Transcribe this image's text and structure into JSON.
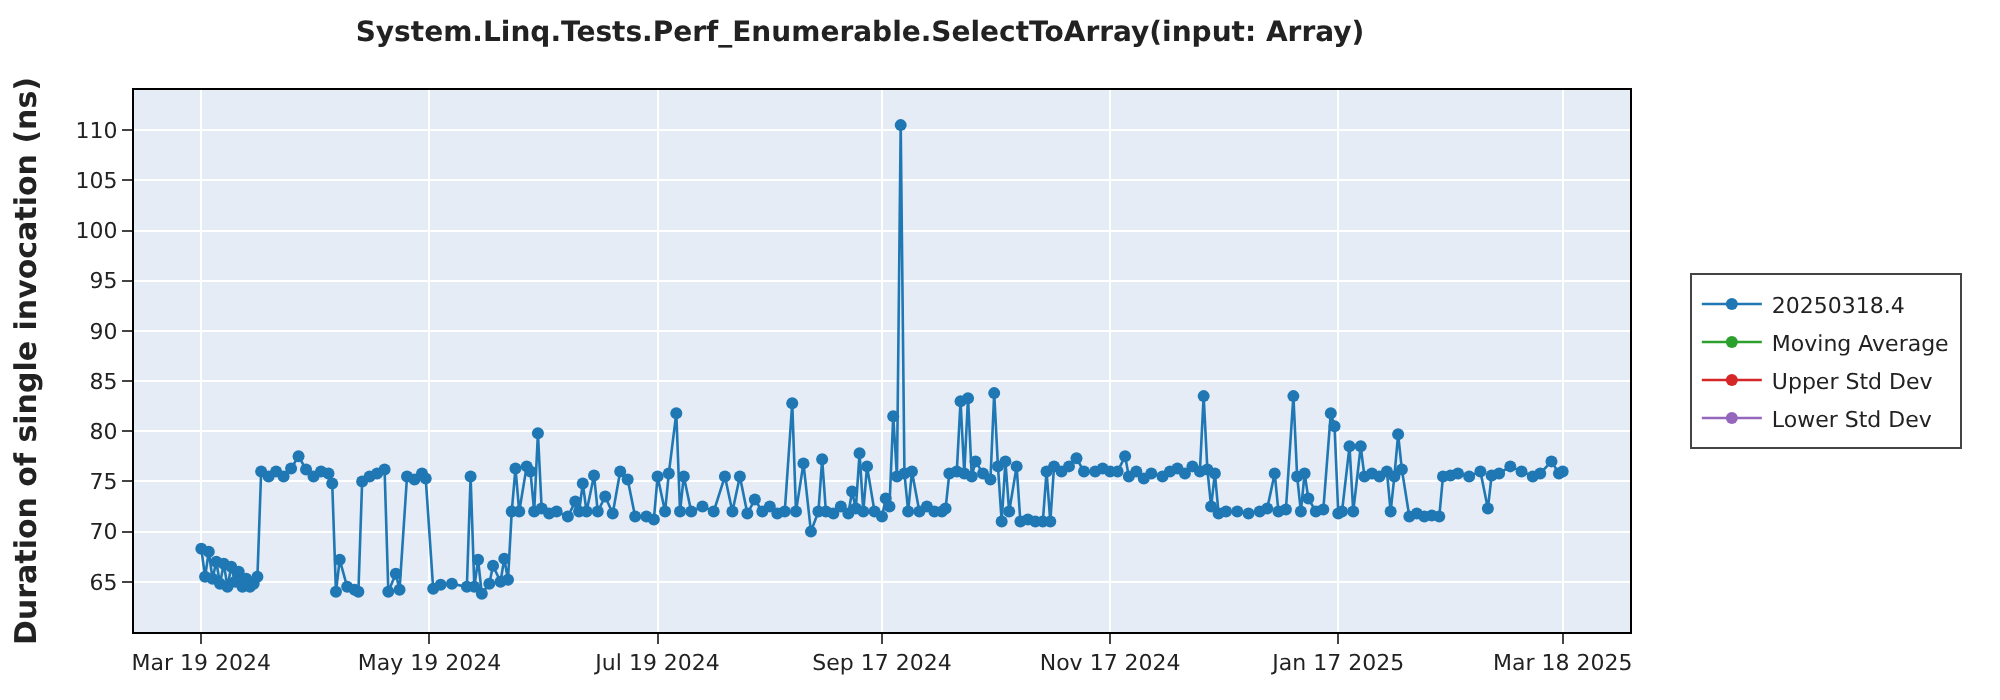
{
  "chart_data": {
    "type": "line",
    "title": "System.Linq.Tests.Perf_Enumerable.SelectToArray(input: Array)",
    "ylabel": "Duration of single invocation (ns)",
    "xlim": [
      "2024-03-01",
      "2025-04-05"
    ],
    "xticks": [
      {
        "value": "2024-03-19",
        "label": "Mar 19 2024"
      },
      {
        "value": "2024-05-19",
        "label": "May 19 2024"
      },
      {
        "value": "2024-07-19",
        "label": "Jul 19 2024"
      },
      {
        "value": "2024-09-17",
        "label": "Sep 17 2024"
      },
      {
        "value": "2024-11-17",
        "label": "Nov 17 2024"
      },
      {
        "value": "2025-01-17",
        "label": "Jan 17 2025"
      },
      {
        "value": "2025-03-18",
        "label": "Mar 18 2025"
      }
    ],
    "ylim": [
      60,
      114
    ],
    "yticks": [
      65,
      70,
      75,
      80,
      85,
      90,
      95,
      100,
      105,
      110
    ],
    "grid": true,
    "legend": "right",
    "marker": "circle",
    "line_style": "solid",
    "series": [
      {
        "name": "20250318.4",
        "color": "#1f77b4",
        "x": [
          "2024-03-19",
          "2024-03-20",
          "2024-03-21",
          "2024-03-22",
          "2024-03-23",
          "2024-03-24",
          "2024-03-25",
          "2024-03-26",
          "2024-03-27",
          "2024-03-28",
          "2024-03-29",
          "2024-03-30",
          "2024-03-31",
          "2024-04-01",
          "2024-04-02",
          "2024-04-03",
          "2024-04-04",
          "2024-04-06",
          "2024-04-08",
          "2024-04-10",
          "2024-04-12",
          "2024-04-14",
          "2024-04-16",
          "2024-04-18",
          "2024-04-20",
          "2024-04-22",
          "2024-04-23",
          "2024-04-24",
          "2024-04-25",
          "2024-04-27",
          "2024-04-29",
          "2024-04-30",
          "2024-05-01",
          "2024-05-03",
          "2024-05-05",
          "2024-05-07",
          "2024-05-08",
          "2024-05-10",
          "2024-05-11",
          "2024-05-13",
          "2024-05-15",
          "2024-05-17",
          "2024-05-18",
          "2024-05-20",
          "2024-05-22",
          "2024-05-25",
          "2024-05-29",
          "2024-05-30",
          "2024-05-31",
          "2024-06-01",
          "2024-06-02",
          "2024-06-04",
          "2024-06-05",
          "2024-06-07",
          "2024-06-08",
          "2024-06-09",
          "2024-06-10",
          "2024-06-11",
          "2024-06-12",
          "2024-06-14",
          "2024-06-15",
          "2024-06-16",
          "2024-06-17",
          "2024-06-18",
          "2024-06-20",
          "2024-06-22",
          "2024-06-25",
          "2024-06-27",
          "2024-06-28",
          "2024-06-29",
          "2024-06-30",
          "2024-07-02",
          "2024-07-03",
          "2024-07-05",
          "2024-07-07",
          "2024-07-09",
          "2024-07-11",
          "2024-07-13",
          "2024-07-16",
          "2024-07-18",
          "2024-07-19",
          "2024-07-21",
          "2024-07-22",
          "2024-07-24",
          "2024-07-25",
          "2024-07-26",
          "2024-07-28",
          "2024-07-31",
          "2024-08-03",
          "2024-08-06",
          "2024-08-08",
          "2024-08-10",
          "2024-08-12",
          "2024-08-14",
          "2024-08-16",
          "2024-08-18",
          "2024-08-20",
          "2024-08-22",
          "2024-08-24",
          "2024-08-25",
          "2024-08-27",
          "2024-08-29",
          "2024-08-31",
          "2024-09-01",
          "2024-09-02",
          "2024-09-04",
          "2024-09-06",
          "2024-09-08",
          "2024-09-09",
          "2024-09-10",
          "2024-09-11",
          "2024-09-12",
          "2024-09-13",
          "2024-09-15",
          "2024-09-17",
          "2024-09-18",
          "2024-09-19",
          "2024-09-20",
          "2024-09-21",
          "2024-09-22",
          "2024-09-23",
          "2024-09-24",
          "2024-09-25",
          "2024-09-27",
          "2024-09-29",
          "2024-10-01",
          "2024-10-03",
          "2024-10-04",
          "2024-10-05",
          "2024-10-07",
          "2024-10-08",
          "2024-10-09",
          "2024-10-10",
          "2024-10-11",
          "2024-10-12",
          "2024-10-14",
          "2024-10-16",
          "2024-10-17",
          "2024-10-18",
          "2024-10-19",
          "2024-10-20",
          "2024-10-21",
          "2024-10-23",
          "2024-10-24",
          "2024-10-26",
          "2024-10-28",
          "2024-10-30",
          "2024-10-31",
          "2024-11-01",
          "2024-11-02",
          "2024-11-04",
          "2024-11-06",
          "2024-11-08",
          "2024-11-10",
          "2024-11-13",
          "2024-11-15",
          "2024-11-17",
          "2024-11-19",
          "2024-11-21",
          "2024-11-22",
          "2024-11-24",
          "2024-11-26",
          "2024-11-28",
          "2024-12-01",
          "2024-12-03",
          "2024-12-05",
          "2024-12-07",
          "2024-12-09",
          "2024-12-11",
          "2024-12-12",
          "2024-12-13",
          "2024-12-14",
          "2024-12-15",
          "2024-12-16",
          "2024-12-18",
          "2024-12-21",
          "2024-12-24",
          "2024-12-27",
          "2024-12-29",
          "2024-12-31",
          "2025-01-01",
          "2025-01-03",
          "2025-01-05",
          "2025-01-06",
          "2025-01-07",
          "2025-01-08",
          "2025-01-09",
          "2025-01-11",
          "2025-01-13",
          "2025-01-15",
          "2025-01-16",
          "2025-01-17",
          "2025-01-18",
          "2025-01-20",
          "2025-01-21",
          "2025-01-23",
          "2025-01-24",
          "2025-01-26",
          "2025-01-28",
          "2025-01-30",
          "2025-01-31",
          "2025-02-01",
          "2025-02-02",
          "2025-02-03",
          "2025-02-05",
          "2025-02-07",
          "2025-02-09",
          "2025-02-11",
          "2025-02-13",
          "2025-02-14",
          "2025-02-16",
          "2025-02-18",
          "2025-02-21",
          "2025-02-24",
          "2025-02-26",
          "2025-02-27",
          "2025-03-01",
          "2025-03-04",
          "2025-03-07",
          "2025-03-10",
          "2025-03-12",
          "2025-03-15",
          "2025-03-17",
          "2025-03-18"
        ],
        "values": [
          68.3,
          65.5,
          68.0,
          65.3,
          67.0,
          64.8,
          66.8,
          64.5,
          66.5,
          65.0,
          66.0,
          64.5,
          65.3,
          64.5,
          64.8,
          65.5,
          76.0,
          75.5,
          76.0,
          75.5,
          76.3,
          77.5,
          76.2,
          75.5,
          76.0,
          75.8,
          74.8,
          64.0,
          67.2,
          64.5,
          64.2,
          64.0,
          75.0,
          75.5,
          75.8,
          76.2,
          64.0,
          65.8,
          64.2,
          75.5,
          75.2,
          75.8,
          75.3,
          64.3,
          64.7,
          64.8,
          64.5,
          75.5,
          64.5,
          67.2,
          63.8,
          64.8,
          66.6,
          65.0,
          67.3,
          65.2,
          72.0,
          76.3,
          72.0,
          76.5,
          76.0,
          72.0,
          79.8,
          72.3,
          71.8,
          72.0,
          71.5,
          73.0,
          72.0,
          74.8,
          72.0,
          75.6,
          72.0,
          73.5,
          71.8,
          76.0,
          75.2,
          71.5,
          71.5,
          71.2,
          75.5,
          72.0,
          75.8,
          81.8,
          72.0,
          75.5,
          72.0,
          72.5,
          72.0,
          75.5,
          72.0,
          75.5,
          71.8,
          73.2,
          72.0,
          72.5,
          71.8,
          72.0,
          82.8,
          72.0,
          76.8,
          70.0,
          72.0,
          77.2,
          72.0,
          71.8,
          72.5,
          71.8,
          74.0,
          72.3,
          77.8,
          72.0,
          76.5,
          72.0,
          71.5,
          73.3,
          72.5,
          81.5,
          75.5,
          110.5,
          75.8,
          72.0,
          76.0,
          72.0,
          72.5,
          72.0,
          72.0,
          72.3,
          75.8,
          76.0,
          83.0,
          75.8,
          83.3,
          75.5,
          77.0,
          75.8,
          75.2,
          83.8,
          76.5,
          71.0,
          77.0,
          72.0,
          76.5,
          71.0,
          71.2,
          71.0,
          71.0,
          76.0,
          71.0,
          76.5,
          76.0,
          76.5,
          77.3,
          76.0,
          76.0,
          76.3,
          76.0,
          76.0,
          77.5,
          75.5,
          76.0,
          75.3,
          75.8,
          75.5,
          76.0,
          76.3,
          75.8,
          76.5,
          76.0,
          83.5,
          76.2,
          72.5,
          75.8,
          71.8,
          72.0,
          72.0,
          71.8,
          72.0,
          72.3,
          75.8,
          72.0,
          72.2,
          83.5,
          75.5,
          72.0,
          75.8,
          73.3,
          72.0,
          72.2,
          81.8,
          80.5,
          71.8,
          72.0,
          78.5,
          72.0,
          78.5,
          75.5,
          75.8,
          75.5,
          76.0,
          72.0,
          75.5,
          79.7,
          76.2,
          71.5,
          71.8,
          71.5,
          71.6,
          71.5,
          75.5,
          75.6,
          75.8,
          75.5,
          76.0,
          72.3,
          75.6,
          75.8,
          76.5,
          76.0,
          75.5,
          75.8,
          77.0,
          75.8,
          76.0
        ]
      },
      {
        "name": "Moving Average",
        "color": "#2ca02c"
      },
      {
        "name": "Upper Std Dev",
        "color": "#d62728"
      },
      {
        "name": "Lower Std Dev",
        "color": "#9467bd"
      }
    ]
  }
}
